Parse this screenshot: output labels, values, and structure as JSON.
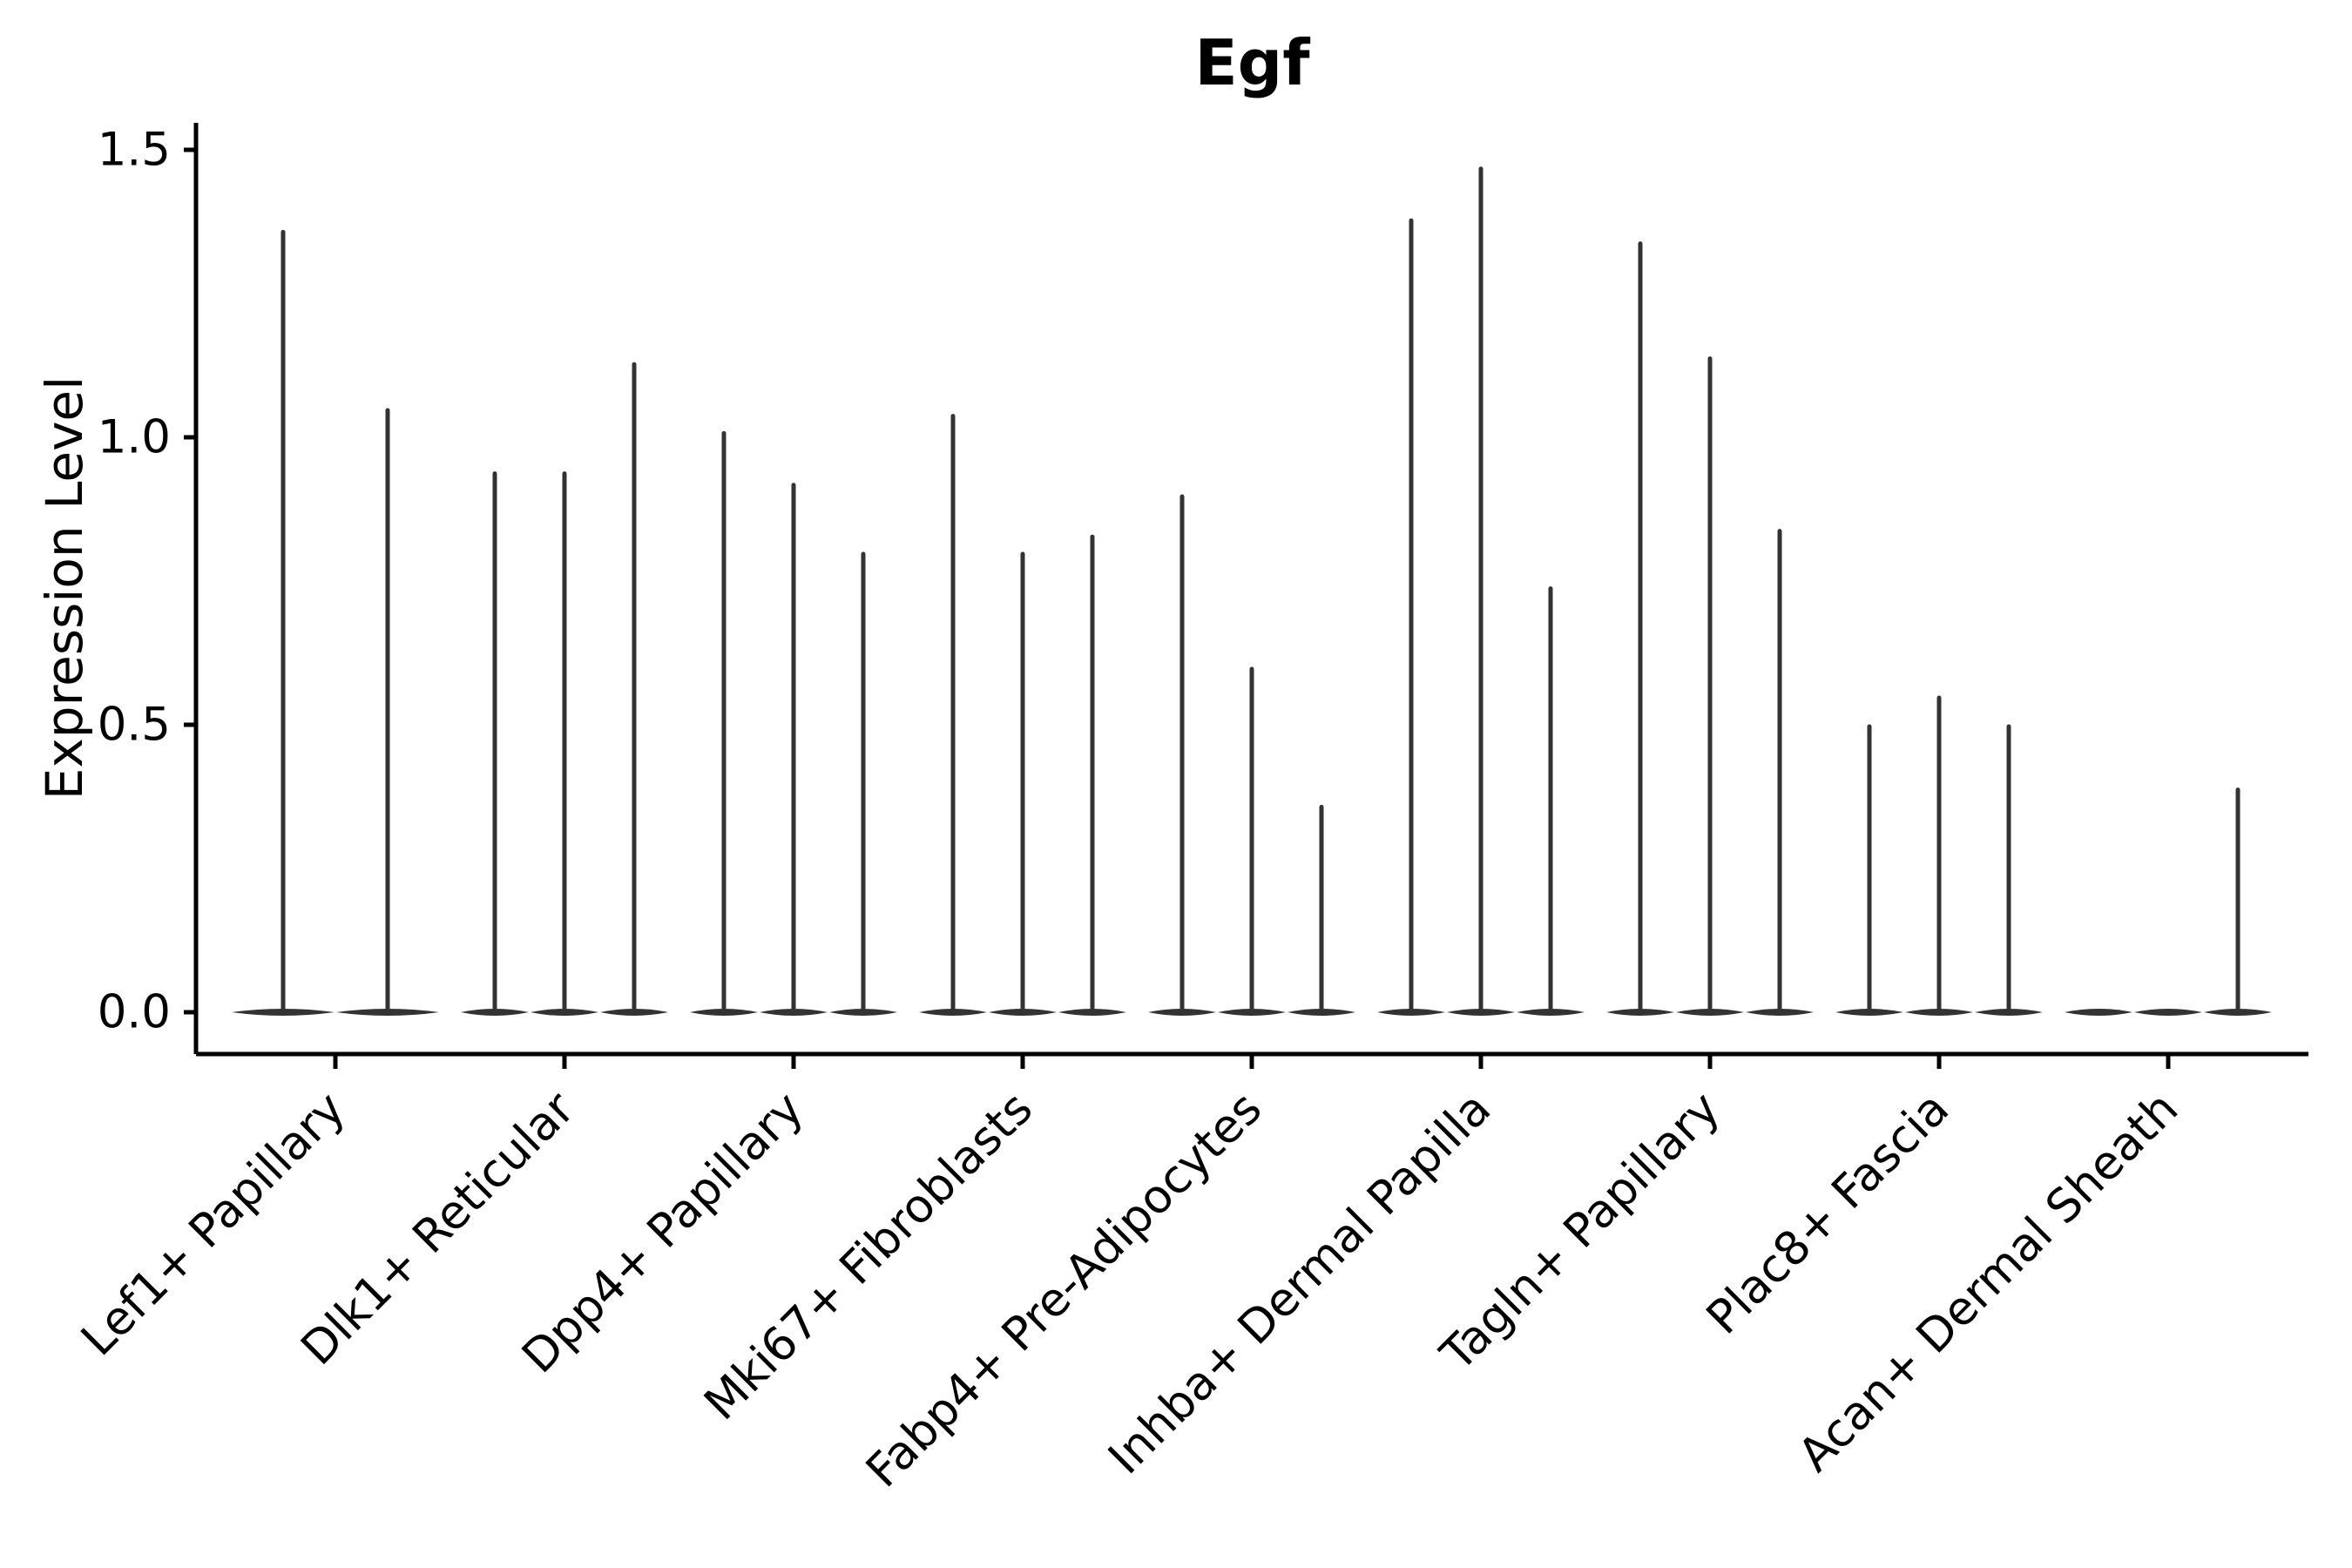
{
  "chart_data": {
    "type": "violin",
    "title": "Egf",
    "xlabel": "",
    "ylabel": "Expression Level",
    "ylim": [
      -0.07,
      1.55
    ],
    "yticks": [
      0,
      0.5,
      1,
      1.5
    ],
    "ytick_labels": [
      "0.0",
      "0.5",
      "1.0",
      "1.5"
    ],
    "grid": false,
    "legend_position": "none",
    "categories": [
      "Lef1+ Papillary",
      "Dlk1+ Reticular",
      "Dpp4+ Papillary",
      "Mki67+ Fibroblasts",
      "Fabp4+ Pre-Adipocytes",
      "Inhba+ Dermal Papilla",
      "Tagln+ Papillary",
      "Plac8+ Fascia",
      "Acan+ Dermal Sheath"
    ],
    "series": [
      {
        "name": "Lef1+ Papillary",
        "violin_maxima": [
          1.36,
          1.05
        ]
      },
      {
        "name": "Dlk1+ Reticular",
        "violin_maxima": [
          0.94,
          0.94,
          1.13
        ]
      },
      {
        "name": "Dpp4+ Papillary",
        "violin_maxima": [
          1.01,
          0.92,
          0.8
        ]
      },
      {
        "name": "Mki67+ Fibroblasts",
        "violin_maxima": [
          1.04,
          0.8,
          0.83
        ]
      },
      {
        "name": "Fabp4+ Pre-Adipocytes",
        "violin_maxima": [
          0.9,
          0.6,
          0.36
        ]
      },
      {
        "name": "Inhba+ Dermal Papilla",
        "violin_maxima": [
          1.38,
          1.47,
          0.74
        ]
      },
      {
        "name": "Tagln+ Papillary",
        "violin_maxima": [
          1.34,
          1.14,
          0.84
        ]
      },
      {
        "name": "Plac8+ Fascia",
        "violin_maxima": [
          0.5,
          0.55,
          0.5
        ]
      },
      {
        "name": "Acan+ Dermal Sheath",
        "violin_maxima": [
          0.0,
          0.0,
          0.39
        ]
      }
    ]
  },
  "style": {
    "violin_color": "#333333",
    "axis_color": "#000000",
    "text_color": "#000000",
    "background_color": "#ffffff"
  }
}
